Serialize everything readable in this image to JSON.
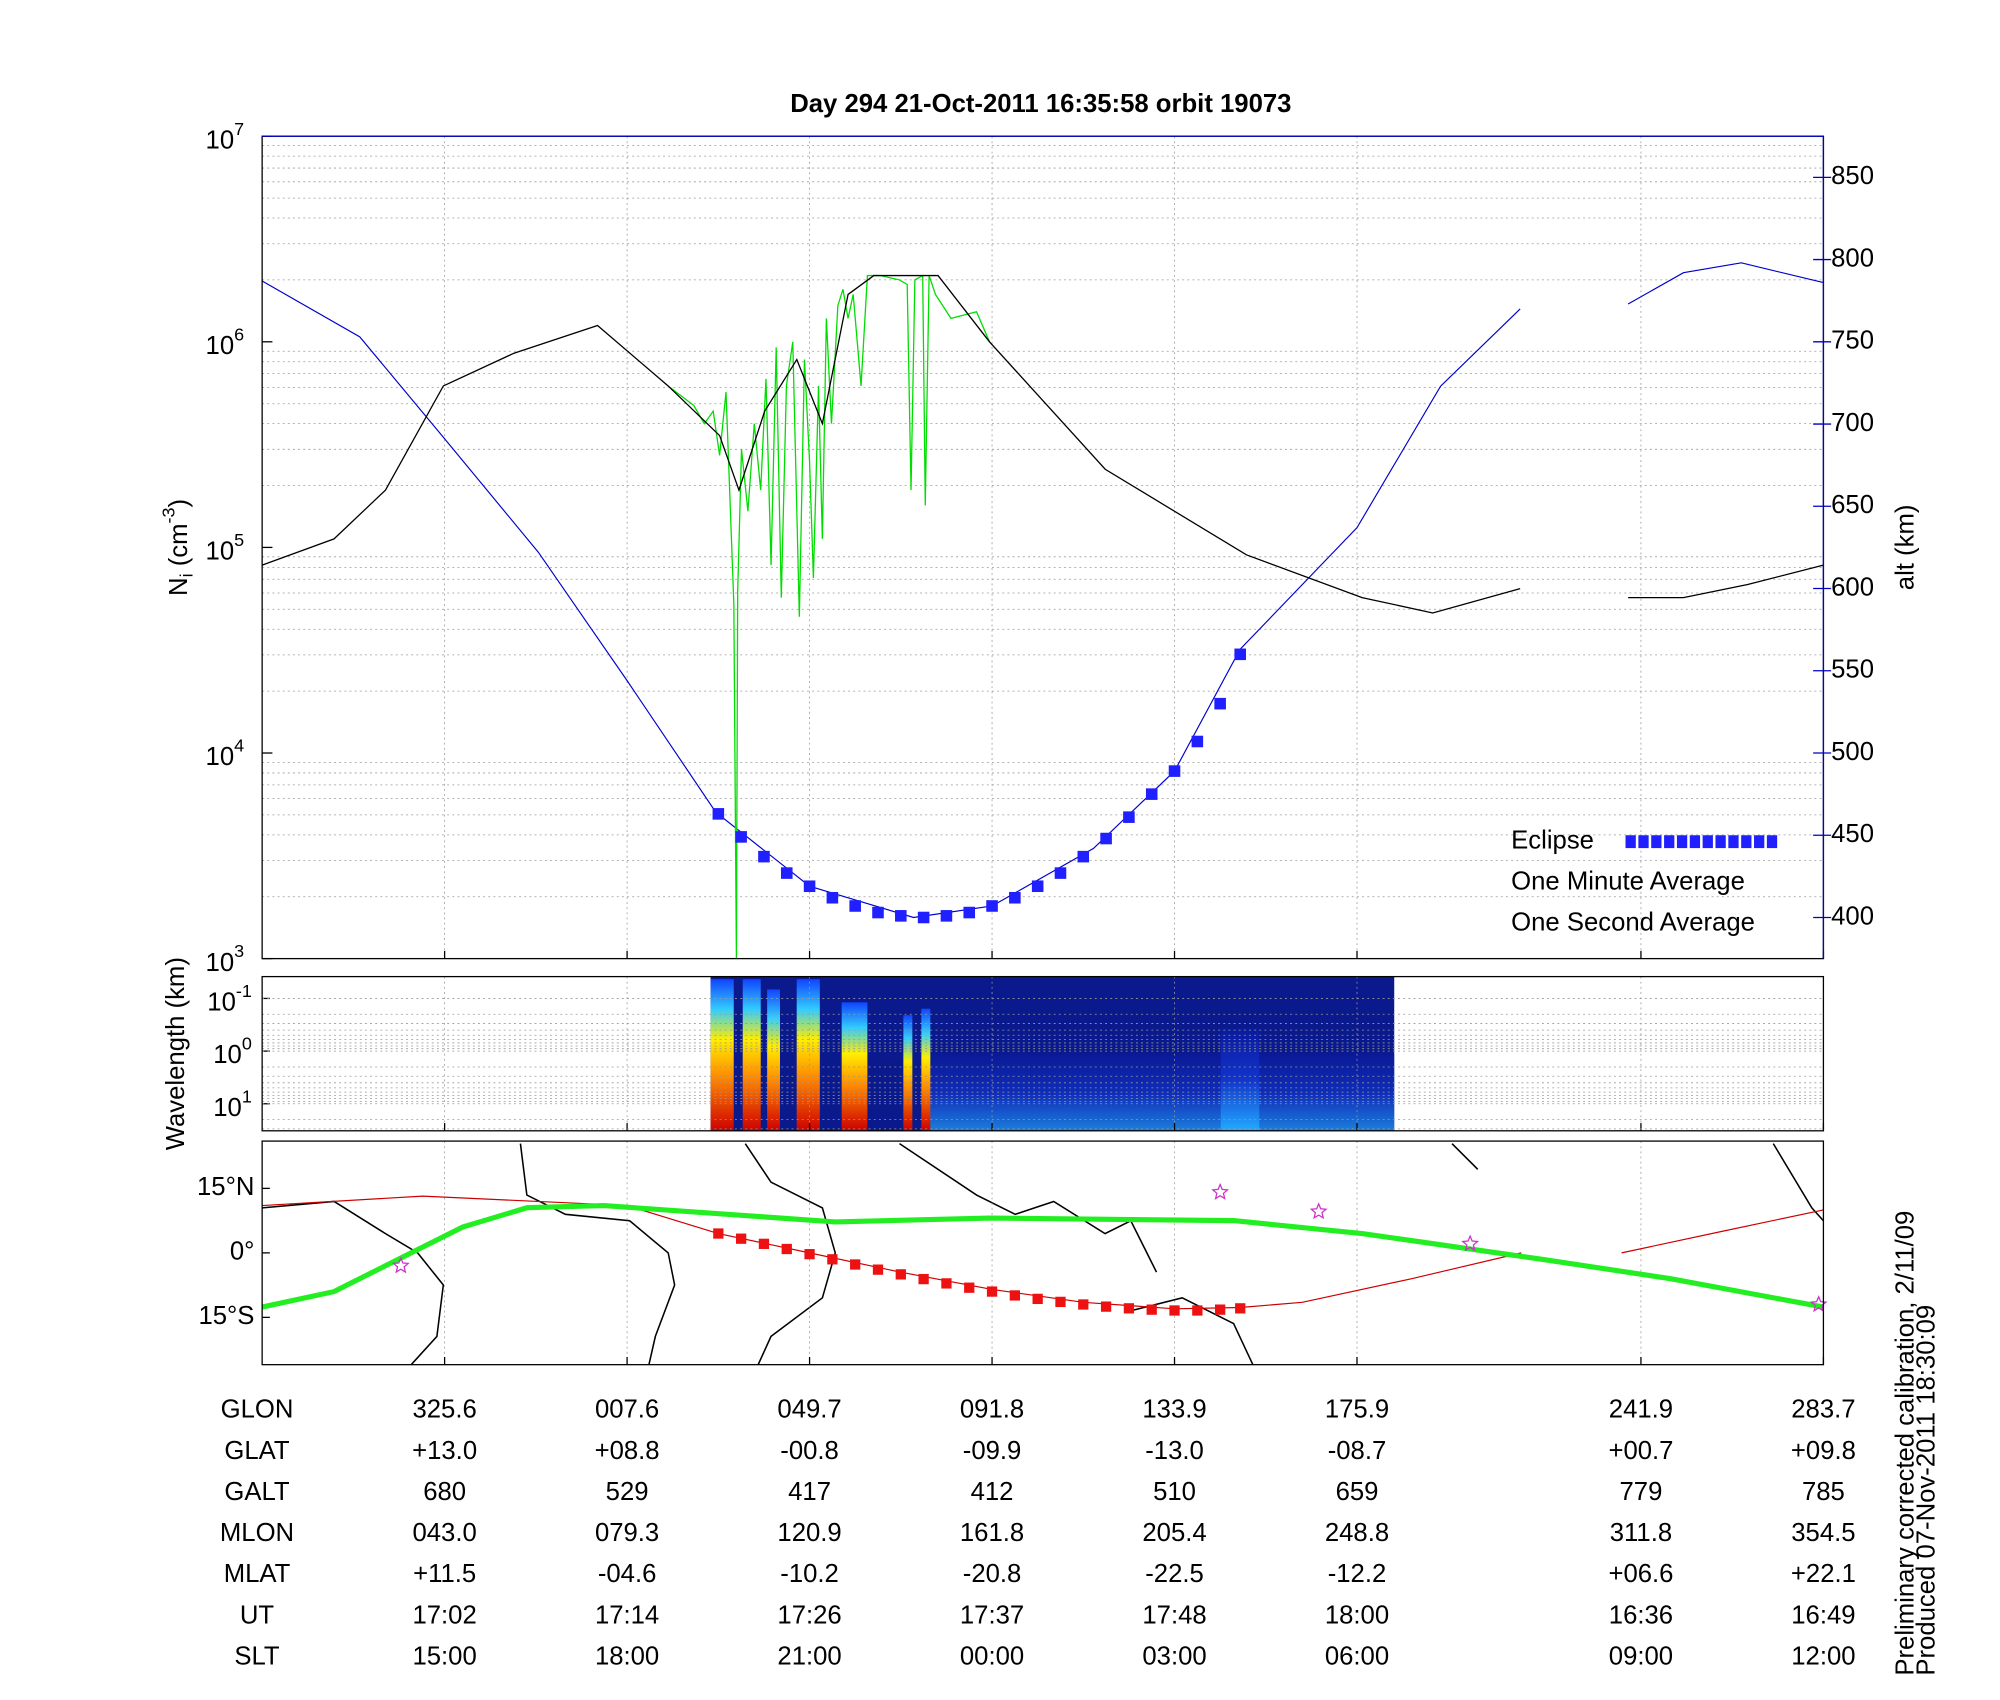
{
  "chart_data": {
    "type": "line",
    "title": "Day 294  21-Oct-2011 16:35:58   orbit 19073",
    "xlim": [
      0,
      8.556
    ],
    "xticks": [
      1,
      2,
      3,
      4,
      5,
      6,
      7.556,
      8.556
    ],
    "ylabel": {
      "base": "N",
      "sub": "i",
      "unit": " (cm",
      "sup": "-3",
      "close": ")"
    },
    "ylog": true,
    "ylim": [
      1000,
      10000000
    ],
    "yticks": [
      {
        "value": 1000,
        "label": "10",
        "exponent": "3"
      },
      {
        "value": 10000,
        "label": "10",
        "exponent": "4"
      },
      {
        "value": 100000,
        "label": "10",
        "exponent": "5"
      },
      {
        "value": 1000000,
        "label": "10",
        "exponent": "6"
      },
      {
        "value": 10000000,
        "label": "10",
        "exponent": "7"
      }
    ],
    "y2label": "alt (km)",
    "y2lim": [
      375,
      875
    ],
    "y2ticks": [
      400,
      450,
      500,
      550,
      600,
      650,
      700,
      750,
      800,
      850
    ],
    "grid": true,
    "legend": "lower right",
    "series": [
      {
        "name": "Eclipse",
        "color": "#1f1fff",
        "marker": "square",
        "axis": "y2",
        "x": [
          2.5,
          2.625,
          2.75,
          2.875,
          3.0,
          3.125,
          3.25,
          3.375,
          3.5,
          3.625,
          3.75,
          3.875,
          4.0,
          4.125,
          4.25,
          4.375,
          4.5,
          4.625,
          4.75,
          4.875,
          5.0,
          5.125,
          5.25,
          5.36
        ],
        "values": [
          463,
          449,
          437,
          427,
          419,
          412,
          407,
          403,
          401,
          400,
          401,
          403,
          407,
          412,
          419,
          427,
          437,
          448,
          461,
          475,
          489,
          507,
          530,
          560
        ]
      },
      {
        "name": "One Minute Average",
        "color": "#000000",
        "x": [
          0,
          0.394,
          0.676,
          0.993,
          1.38,
          1.838,
          2.225,
          2.507,
          2.613,
          2.754,
          2.93,
          3.07,
          3.211,
          3.352,
          3.704,
          3.986,
          4.62,
          5.394,
          6.028,
          6.415,
          6.894,
          null,
          7.486,
          7.789,
          8.141,
          8.556
        ],
        "values": [
          82000,
          110000,
          190000,
          610000,
          880000,
          1200000,
          610000,
          350000,
          190000,
          460000,
          820000,
          400000,
          1700000,
          2100000,
          2100000,
          1000000,
          240000,
          92000,
          57000,
          48000,
          63000,
          null,
          57000,
          57000,
          66000,
          82000
        ]
      },
      {
        "name": "One Second Average",
        "color": "#00dd00",
        "x": [
          2.225,
          2.366,
          2.423,
          2.472,
          2.507,
          2.542,
          2.563,
          2.585,
          2.599,
          2.606,
          2.627,
          2.662,
          2.697,
          2.732,
          2.761,
          2.789,
          2.817,
          2.845,
          2.873,
          2.908,
          2.944,
          2.972,
          3.0,
          3.021,
          3.049,
          3.07,
          3.092,
          3.12,
          3.155,
          3.183,
          3.211,
          3.239,
          3.282,
          3.317,
          3.387,
          3.493,
          3.535,
          3.556,
          3.577,
          3.62,
          3.634,
          3.655,
          3.69,
          3.775,
          3.915,
          3.986
        ],
        "values": [
          610000,
          490000,
          400000,
          460000,
          280000,
          570000,
          180000,
          53000,
          1000,
          61000,
          300000,
          150000,
          400000,
          190000,
          660000,
          82000,
          940000,
          57000,
          610000,
          1000000,
          46000,
          820000,
          260000,
          71000,
          610000,
          110000,
          1300000,
          400000,
          1500000,
          1800000,
          1300000,
          1700000,
          610000,
          2100000,
          2100000,
          2000000,
          1900000,
          190000,
          2000000,
          2100000,
          160000,
          2100000,
          1700000,
          1300000,
          1400000,
          1000000
        ]
      },
      {
        "color": "#0000cc",
        "axis": "y2",
        "x": [
          0,
          0.535,
          0.993,
          1.514,
          2.0,
          2.486,
          3.0,
          3.57,
          4.0,
          4.556,
          5.0,
          5.359,
          6.0,
          6.458,
          6.894,
          null,
          7.486,
          7.789,
          8.106,
          8.556
        ],
        "values": [
          787,
          753,
          692,
          622,
          544,
          464,
          419,
          400,
          407,
          442,
          489,
          563,
          637,
          723,
          770,
          null,
          773,
          792,
          798,
          786
        ]
      }
    ],
    "spectrogram": {
      "ylabel": "Wavelength (km)",
      "ylog": true,
      "ylim": [
        0.0385,
        32.6
      ],
      "yticks": [
        {
          "value": 0.1,
          "label": "10",
          "exponent": "-1"
        },
        {
          "value": 1,
          "label": "10",
          "exponent": "0"
        },
        {
          "value": 10,
          "label": "10",
          "exponent": "1"
        }
      ]
    },
    "map": {
      "ylim": [
        -26,
        26
      ],
      "yticks": [
        {
          "value": 15,
          "label": "15°N"
        },
        {
          "value": 0,
          "label": "0°"
        },
        {
          "value": -15,
          "label": "15°S"
        }
      ],
      "series": [
        {
          "color": "#cc0000",
          "x": [
            0,
            0.88,
            2.0,
            2.5,
            3.0,
            3.5,
            4.0,
            4.5,
            5.0,
            5.36,
            5.7,
            6.3,
            6.9,
            null,
            7.45,
            8.0,
            8.556
          ],
          "values": [
            11,
            13.2,
            11,
            4.5,
            0,
            -4.5,
            -8.5,
            -11.5,
            -13,
            -12.7,
            -11.5,
            -6,
            0,
            null,
            0,
            5,
            10
          ]
        },
        {
          "color": "#22ee22",
          "x": [
            0,
            0.394,
            0.746,
            1.099,
            1.451,
            1.873,
            3.141,
            3.986,
            5.324,
            6.028,
            7.014,
            7.718,
            8.556
          ],
          "values": [
            -12.6,
            -9,
            -1.5,
            6,
            10.5,
            11,
            7.2,
            8.1,
            7.5,
            4.5,
            -1.5,
            -6,
            -12.6
          ]
        },
        {
          "color": "#ee1111",
          "marker": "square",
          "x": [
            2.5,
            2.625,
            2.75,
            2.875,
            3.0,
            3.125,
            3.25,
            3.375,
            3.5,
            3.625,
            3.75,
            3.875,
            4.0,
            4.125,
            4.25,
            4.375,
            4.5,
            4.625,
            4.75,
            4.875,
            5.0,
            5.125,
            5.25,
            5.36
          ],
          "values": [
            4.5,
            3.3,
            2.1,
            0.9,
            -0.3,
            -1.5,
            -2.7,
            -3.9,
            -5.0,
            -6.1,
            -7.1,
            -8.1,
            -9.0,
            -9.9,
            -10.7,
            -11.4,
            -12.0,
            -12.5,
            -12.9,
            -13.2,
            -13.4,
            -13.4,
            -13.2,
            -12.9
          ]
        }
      ],
      "stars": {
        "color": "#cc33cc",
        "x": [
          0.76,
          5.25,
          5.79,
          6.62,
          8.53
        ],
        "values": [
          -3,
          14.1,
          9.6,
          2.1,
          -12
        ]
      }
    },
    "table": {
      "rows": [
        {
          "label": "GLON",
          "cells": [
            "325.6",
            "007.6",
            "049.7",
            "091.8",
            "133.9",
            "175.9",
            "241.9",
            "283.7"
          ]
        },
        {
          "label": "GLAT",
          "cells": [
            "+13.0",
            "+08.8",
            "-00.8",
            "-09.9",
            "-13.0",
            "-08.7",
            "+00.7",
            "+09.8"
          ]
        },
        {
          "label": "GALT",
          "cells": [
            "680",
            "529",
            "417",
            "412",
            "510",
            "659",
            "779",
            "785"
          ]
        },
        {
          "label": "MLON",
          "cells": [
            "043.0",
            "079.3",
            "120.9",
            "161.8",
            "205.4",
            "248.8",
            "311.8",
            "354.5"
          ]
        },
        {
          "label": "MLAT",
          "cells": [
            "+11.5",
            "-04.6",
            "-10.2",
            "-20.8",
            "-22.5",
            "-12.2",
            "+06.6",
            "+22.1"
          ]
        },
        {
          "label": "UT",
          "cells": [
            "17:02",
            "17:14",
            "17:26",
            "17:37",
            "17:48",
            "18:00",
            "16:36",
            "16:49"
          ]
        },
        {
          "label": "SLT",
          "cells": [
            "15:00",
            "18:00",
            "21:00",
            "00:00",
            "03:00",
            "06:00",
            "09:00",
            "12:00"
          ]
        }
      ]
    },
    "footer": [
      "Preliminary corrected calibration, 2/11/09",
      "Produced 07-Nov-2011 18:30:09"
    ]
  }
}
